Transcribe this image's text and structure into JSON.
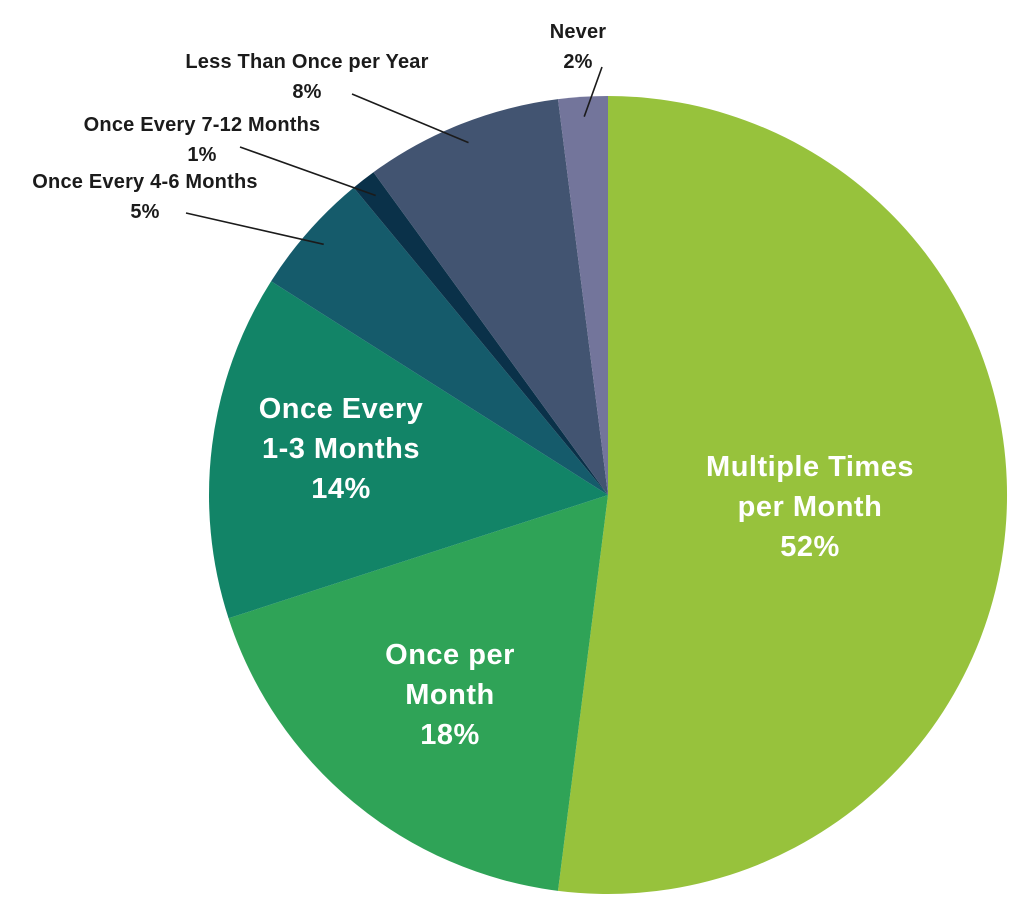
{
  "chart_data": {
    "type": "pie",
    "title": "",
    "unit": "percent",
    "start": "12 o'clock",
    "direction": "clockwise",
    "legend_position": "none",
    "background_color": "#FFFFFF",
    "leader_line_color": "#1B1B1B",
    "slices": [
      {
        "label": "Multiple Times per Month",
        "value": 52,
        "pct_text": "52%",
        "color": "#97C23C",
        "label_color": "#FFFFFF",
        "label_placement": "inside",
        "label_lines": [
          "Multiple Times",
          "per Month"
        ]
      },
      {
        "label": "Once per Month",
        "value": 18,
        "pct_text": "18%",
        "color": "#2FA357",
        "label_color": "#FFFFFF",
        "label_placement": "inside",
        "label_lines": [
          "Once per",
          "Month"
        ]
      },
      {
        "label": "Once Every 1-3 Months",
        "value": 14,
        "pct_text": "14%",
        "color": "#128467",
        "label_color": "#FFFFFF",
        "label_placement": "inside",
        "label_lines": [
          "Once Every",
          "1-3 Months"
        ]
      },
      {
        "label": "Once Every 4-6 Months",
        "value": 5,
        "pct_text": "5%",
        "color": "#155B6B",
        "label_color": "#1B1B1B",
        "label_placement": "outside-callout"
      },
      {
        "label": "Once Every 7-12 Months",
        "value": 1,
        "pct_text": "1%",
        "color": "#0A3149",
        "label_color": "#1B1B1B",
        "label_placement": "outside-callout"
      },
      {
        "label": "Less Than Once per Year",
        "value": 8,
        "pct_text": "8%",
        "color": "#425471",
        "label_color": "#1B1B1B",
        "label_placement": "outside-callout"
      },
      {
        "label": "Never",
        "value": 2,
        "pct_text": "2%",
        "color": "#73759B",
        "label_color": "#1B1B1B",
        "label_placement": "outside-callout"
      }
    ]
  }
}
